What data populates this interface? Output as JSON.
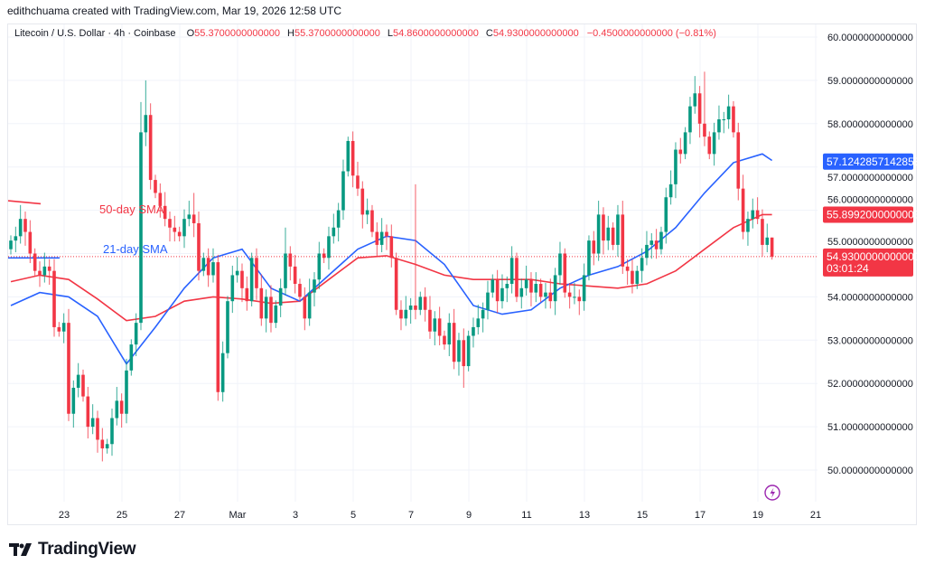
{
  "credit": "edithchuama created with TradingView.com, Mar 19, 2026 12:58 UTC",
  "legend": {
    "symbol": "Litecoin / U.S. Dollar · 4h · Coinbase",
    "o_label": "O",
    "o_value": "55.3700000000000",
    "h_label": "H",
    "h_value": "55.3700000000000",
    "l_label": "L",
    "l_value": "54.8600000000000",
    "c_label": "C",
    "c_value": "54.9300000000000",
    "change": "−0.4500000000000 (−0.81%)"
  },
  "logo_text": "TradingView",
  "colors": {
    "up": "#089981",
    "down": "#f23645",
    "sma21": "#2962ff",
    "sma50": "#f23645",
    "grid": "#f0f3fa",
    "flash": "#9c27b0"
  },
  "chart_data": {
    "type": "candlestick",
    "interval": "4h",
    "ylim": [
      49.4,
      60.4
    ],
    "y_ticks": [
      "50.0000000000000",
      "51.0000000000000",
      "52.0000000000000",
      "53.0000000000000",
      "54.0000000000000",
      "55.0000000000000",
      "56.0000000000000",
      "57.0000000000000",
      "58.0000000000000",
      "59.0000000000000",
      "60.0000000000000"
    ],
    "x_ticks": [
      "23",
      "25",
      "27",
      "Mar",
      "3",
      "5",
      "7",
      "9",
      "11",
      "13",
      "15",
      "17",
      "19",
      "21"
    ],
    "grid": true,
    "closes": [
      55.3,
      55.4,
      55.8,
      55.5,
      55.0,
      54.6,
      54.5,
      54.7,
      54.6,
      53.3,
      53.2,
      53.4,
      51.3,
      51.9,
      52.2,
      51.7,
      51.0,
      51.2,
      50.7,
      50.5,
      50.6,
      51.2,
      51.6,
      51.3,
      52.3,
      52.9,
      53.4,
      57.8,
      58.2,
      56.7,
      56.4,
      56.1,
      55.8,
      55.6,
      55.5,
      55.4,
      55.8,
      55.9,
      55.7,
      54.6,
      54.9,
      54.5,
      54.8,
      51.8,
      52.7,
      53.9,
      54.5,
      54.6,
      54.2,
      53.9,
      54.9,
      54.2,
      53.5,
      54.0,
      53.4,
      53.8,
      54.2,
      55.0,
      54.7,
      54.3,
      54.0,
      53.5,
      54.1,
      54.4,
      55.0,
      54.9,
      55.4,
      55.6,
      56.0,
      56.9,
      57.6,
      56.8,
      56.5,
      55.9,
      56.0,
      55.5,
      55.2,
      55.5,
      55.4,
      54.9,
      53.7,
      53.5,
      53.7,
      53.8,
      53.7,
      54.0,
      53.7,
      53.2,
      53.5,
      53.1,
      52.9,
      53.4,
      52.5,
      53.0,
      52.4,
      53.1,
      53.3,
      53.5,
      53.7,
      54.1,
      54.4,
      53.9,
      54.2,
      54.3,
      54.9,
      54.0,
      54.2,
      54.4,
      54.1,
      54.3,
      54.0,
      54.1,
      53.9,
      54.5,
      55.0,
      54.1,
      54.0,
      54.0,
      53.9,
      54.5,
      55.3,
      55.0,
      55.9,
      55.3,
      55.6,
      55.2,
      55.9,
      54.7,
      54.6,
      54.3,
      54.6,
      54.9,
      55.2,
      55.3,
      55.1,
      55.5,
      56.3,
      56.6,
      57.4,
      57.3,
      57.8,
      58.4,
      58.7,
      58.0,
      57.7,
      57.3,
      57.8,
      58.1,
      58.1,
      58.4,
      57.8,
      56.5,
      55.5,
      55.8,
      56.0,
      55.8,
      55.2,
      55.37,
      54.93
    ],
    "first_open": 55.1,
    "notable_wicks": {
      "high": {
        "27": 58.5,
        "28": 59.0,
        "38": 56.4,
        "57": 55.6,
        "70": 57.7,
        "84": 56.6,
        "144": 59.2,
        "142": 59.1,
        "155": 56.3
      },
      "low": {
        "19": 50.2,
        "43": 51.6,
        "94": 51.9,
        "18": 50.4
      }
    },
    "current_price": 54.93,
    "series": [
      {
        "name": "21-day SMA",
        "color": "#2962ff",
        "last_value": "57.1242857142858",
        "daily_values": [
          53.8,
          54.1,
          54.0,
          53.55,
          52.45,
          53.3,
          54.2,
          54.9,
          55.1,
          54.2,
          53.9,
          54.5,
          55.1,
          55.4,
          55.3,
          54.75,
          53.8,
          53.6,
          53.7,
          54.2,
          54.5,
          54.7,
          55.05,
          55.6,
          56.4,
          57.1,
          57.3,
          57.15
        ]
      },
      {
        "name": "50-day SMA",
        "color": "#f23645",
        "last_value": "55.8992000000003",
        "daily_values": [
          54.35,
          54.5,
          54.4,
          53.95,
          53.45,
          53.55,
          53.9,
          54.0,
          53.95,
          53.85,
          53.9,
          54.4,
          54.9,
          54.95,
          54.75,
          54.5,
          54.4,
          54.4,
          54.4,
          54.3,
          54.25,
          54.2,
          54.3,
          54.6,
          55.1,
          55.6,
          55.9,
          55.9
        ]
      }
    ],
    "price_labels": {
      "sma21": "57.1242857142858",
      "sma50": "55.8992000000003",
      "last": "54.9300000000000",
      "countdown": "03:01:24"
    }
  }
}
